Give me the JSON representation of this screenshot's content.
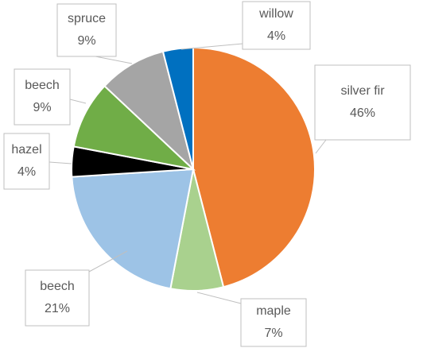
{
  "chart_data": {
    "type": "pie",
    "categories": [
      "silver fir",
      "maple",
      "beech",
      "hazel",
      "beech",
      "spruce",
      "willow"
    ],
    "values": [
      46,
      7,
      21,
      4,
      9,
      9,
      4
    ],
    "value_labels": [
      "46%",
      "7%",
      "21%",
      "4%",
      "9%",
      "9%",
      "4%"
    ],
    "colors": [
      "#ED7D31",
      "#A9D18E",
      "#9DC3E6",
      "#000000",
      "#70AD47",
      "#A5A5A5",
      "#0070C0"
    ]
  }
}
